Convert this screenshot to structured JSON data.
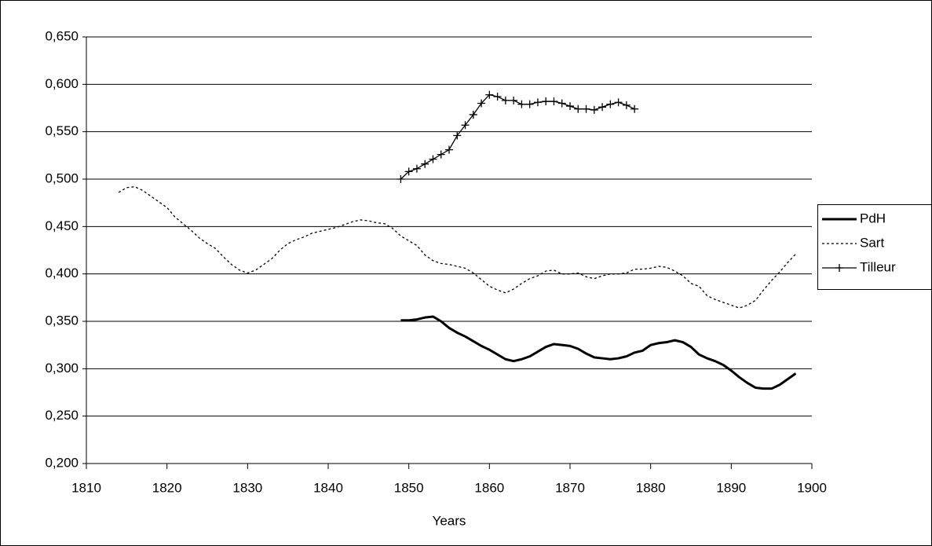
{
  "chart_data": {
    "type": "line",
    "x_label": "Years",
    "xlim": [
      1810,
      1900
    ],
    "xticks": [
      1810,
      1820,
      1830,
      1840,
      1850,
      1860,
      1870,
      1880,
      1890,
      1900
    ],
    "ylim": [
      0.2,
      0.65
    ],
    "yticks": [
      {
        "value": 0.2,
        "label": "0,200"
      },
      {
        "value": 0.25,
        "label": "0,250"
      },
      {
        "value": 0.3,
        "label": "0,300"
      },
      {
        "value": 0.35,
        "label": "0,350"
      },
      {
        "value": 0.4,
        "label": "0,400"
      },
      {
        "value": 0.45,
        "label": "0,450"
      },
      {
        "value": 0.5,
        "label": "0,500"
      },
      {
        "value": 0.55,
        "label": "0,550"
      },
      {
        "value": 0.6,
        "label": "0,600"
      },
      {
        "value": 0.65,
        "label": "0,650"
      }
    ],
    "grid": true,
    "legend": "right",
    "series": [
      {
        "name": "PdH",
        "color": "#000000",
        "dash": "solid",
        "marker": "none",
        "x": [
          1849,
          1850,
          1851,
          1852,
          1853,
          1854,
          1855,
          1856,
          1857,
          1858,
          1859,
          1860,
          1861,
          1862,
          1863,
          1864,
          1865,
          1866,
          1867,
          1868,
          1869,
          1870,
          1871,
          1872,
          1873,
          1874,
          1875,
          1876,
          1877,
          1878,
          1879,
          1880,
          1881,
          1882,
          1883,
          1884,
          1885,
          1886,
          1887,
          1888,
          1889,
          1890,
          1891,
          1892,
          1893,
          1894,
          1895,
          1896,
          1897,
          1898
        ],
        "values": [
          0.351,
          0.351,
          0.352,
          0.354,
          0.355,
          0.35,
          0.343,
          0.338,
          0.334,
          0.329,
          0.324,
          0.32,
          0.315,
          0.31,
          0.308,
          0.31,
          0.313,
          0.318,
          0.323,
          0.326,
          0.325,
          0.324,
          0.321,
          0.316,
          0.312,
          0.311,
          0.31,
          0.311,
          0.313,
          0.317,
          0.319,
          0.325,
          0.327,
          0.328,
          0.33,
          0.328,
          0.323,
          0.315,
          0.311,
          0.308,
          0.304,
          0.298,
          0.291,
          0.285,
          0.28,
          0.279,
          0.279,
          0.283,
          0.289,
          0.295
        ]
      },
      {
        "name": "Sart",
        "color": "#000000",
        "dash": "dotted",
        "marker": "none",
        "x": [
          1814,
          1815,
          1816,
          1817,
          1818,
          1819,
          1820,
          1821,
          1822,
          1823,
          1824,
          1825,
          1826,
          1827,
          1828,
          1829,
          1830,
          1831,
          1832,
          1833,
          1834,
          1835,
          1836,
          1837,
          1838,
          1839,
          1840,
          1841,
          1842,
          1843,
          1844,
          1845,
          1846,
          1847,
          1848,
          1849,
          1850,
          1851,
          1852,
          1853,
          1854,
          1855,
          1856,
          1857,
          1858,
          1859,
          1860,
          1861,
          1862,
          1863,
          1864,
          1865,
          1866,
          1867,
          1868,
          1869,
          1870,
          1871,
          1872,
          1873,
          1874,
          1875,
          1876,
          1877,
          1878,
          1879,
          1880,
          1881,
          1882,
          1883,
          1884,
          1885,
          1886,
          1887,
          1888,
          1889,
          1890,
          1891,
          1892,
          1893,
          1894,
          1895,
          1896,
          1897,
          1898
        ],
        "values": [
          0.486,
          0.491,
          0.492,
          0.488,
          0.482,
          0.476,
          0.47,
          0.46,
          0.453,
          0.446,
          0.438,
          0.432,
          0.427,
          0.418,
          0.41,
          0.404,
          0.401,
          0.404,
          0.41,
          0.416,
          0.425,
          0.432,
          0.436,
          0.439,
          0.443,
          0.445,
          0.447,
          0.449,
          0.452,
          0.455,
          0.457,
          0.456,
          0.454,
          0.453,
          0.448,
          0.44,
          0.435,
          0.43,
          0.42,
          0.414,
          0.411,
          0.41,
          0.408,
          0.406,
          0.401,
          0.394,
          0.387,
          0.383,
          0.38,
          0.384,
          0.39,
          0.395,
          0.398,
          0.403,
          0.404,
          0.4,
          0.4,
          0.401,
          0.397,
          0.395,
          0.398,
          0.4,
          0.4,
          0.401,
          0.405,
          0.405,
          0.406,
          0.408,
          0.407,
          0.403,
          0.398,
          0.39,
          0.387,
          0.377,
          0.373,
          0.37,
          0.367,
          0.364,
          0.367,
          0.372,
          0.383,
          0.393,
          0.402,
          0.412,
          0.421
        ]
      },
      {
        "name": "Tilleur",
        "color": "#000000",
        "dash": "solid",
        "marker": "plus",
        "x": [
          1849,
          1850,
          1851,
          1852,
          1853,
          1854,
          1855,
          1856,
          1857,
          1858,
          1859,
          1860,
          1861,
          1862,
          1863,
          1864,
          1865,
          1866,
          1867,
          1868,
          1869,
          1870,
          1871,
          1872,
          1873,
          1874,
          1875,
          1876,
          1877,
          1878
        ],
        "values": [
          0.5,
          0.508,
          0.511,
          0.516,
          0.521,
          0.526,
          0.531,
          0.546,
          0.557,
          0.568,
          0.58,
          0.589,
          0.587,
          0.583,
          0.583,
          0.579,
          0.579,
          0.581,
          0.582,
          0.582,
          0.58,
          0.577,
          0.574,
          0.574,
          0.573,
          0.576,
          0.579,
          0.581,
          0.578,
          0.574
        ]
      }
    ]
  }
}
